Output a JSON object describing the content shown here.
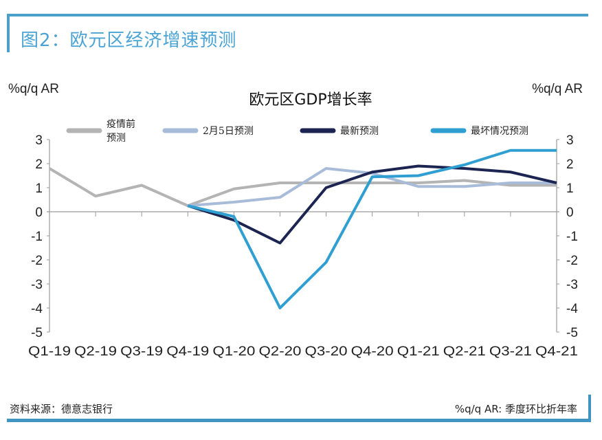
{
  "figure_title": "图2：欧元区经济增速预测",
  "source": "资料来源：德意志银行",
  "note": "%q/q AR: 季度环比折年率",
  "chart_data": {
    "type": "line",
    "title": "欧元区GDP增长率",
    "ylabel_left": "%q/q AR",
    "ylabel_right": "%q/q AR",
    "ylim": [
      -5,
      3
    ],
    "yticks": [
      3,
      2,
      1,
      0,
      -1,
      -2,
      -3,
      -4,
      -5
    ],
    "categories": [
      "Q1-19",
      "Q2-19",
      "Q3-19",
      "Q4-19",
      "Q1-20",
      "Q2-20",
      "Q3-20",
      "Q4-20",
      "Q1-21",
      "Q2-21",
      "Q3-21",
      "Q4-21"
    ],
    "legend_position": "top",
    "grid": false,
    "series": [
      {
        "name": "疫情前预测",
        "name_lines": [
          "疫情前",
          "预测"
        ],
        "color": "#b4b4b4",
        "values": [
          1.8,
          0.65,
          1.1,
          0.25,
          0.95,
          1.2,
          1.2,
          1.2,
          1.2,
          1.3,
          1.1,
          1.1
        ]
      },
      {
        "name": "2月5日预测",
        "color": "#a8bcd9",
        "values": [
          null,
          null,
          null,
          0.25,
          0.4,
          0.6,
          1.8,
          1.6,
          1.05,
          1.05,
          1.2,
          1.2
        ]
      },
      {
        "name": "最新预测",
        "color": "#1c2552",
        "values": [
          null,
          null,
          null,
          0.25,
          -0.35,
          -1.3,
          1.0,
          1.65,
          1.9,
          1.8,
          1.65,
          1.2
        ]
      },
      {
        "name": "最坏情况预测",
        "color": "#2f9fd2",
        "values": [
          null,
          null,
          null,
          0.25,
          -0.2,
          -4.0,
          -2.1,
          1.45,
          1.5,
          1.95,
          2.55,
          2.55
        ]
      }
    ]
  }
}
